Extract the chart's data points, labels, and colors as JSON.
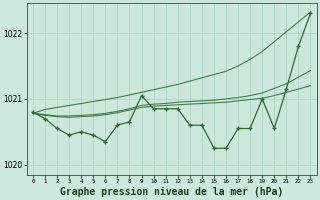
{
  "background_color": "#cce8dc",
  "grid_color": "#b0d8c8",
  "line_color": "#2d6a2d",
  "x_values": [
    0,
    1,
    2,
    3,
    4,
    5,
    6,
    7,
    8,
    9,
    10,
    11,
    12,
    13,
    14,
    15,
    16,
    17,
    18,
    19,
    20,
    21,
    22,
    23
  ],
  "series_main": [
    1020.8,
    1020.7,
    1020.55,
    1020.45,
    1020.5,
    1020.45,
    1020.35,
    1020.6,
    1020.65,
    1021.05,
    1020.85,
    1020.85,
    1020.85,
    1020.6,
    1020.6,
    1020.25,
    1020.25,
    1020.55,
    1020.55,
    1021.0,
    1020.55,
    1021.15,
    1021.8,
    1022.3
  ],
  "series_smooth1": [
    1020.78,
    1020.75,
    1020.73,
    1020.72,
    1020.73,
    1020.74,
    1020.76,
    1020.79,
    1020.83,
    1020.87,
    1020.89,
    1020.9,
    1020.91,
    1020.92,
    1020.93,
    1020.94,
    1020.95,
    1020.97,
    1020.99,
    1021.01,
    1021.05,
    1021.1,
    1021.15,
    1021.2
  ],
  "series_smooth2": [
    1020.78,
    1020.76,
    1020.74,
    1020.74,
    1020.75,
    1020.76,
    1020.78,
    1020.81,
    1020.85,
    1020.9,
    1020.92,
    1020.93,
    1020.95,
    1020.96,
    1020.97,
    1020.98,
    1021.0,
    1021.02,
    1021.05,
    1021.09,
    1021.16,
    1021.23,
    1021.33,
    1021.43
  ],
  "series_trend": [
    1020.78,
    1020.84,
    1020.87,
    1020.9,
    1020.93,
    1020.96,
    1020.99,
    1021.02,
    1021.06,
    1021.1,
    1021.14,
    1021.18,
    1021.22,
    1021.27,
    1021.32,
    1021.37,
    1021.42,
    1021.5,
    1021.6,
    1021.72,
    1021.87,
    1022.02,
    1022.17,
    1022.32
  ],
  "ylim": [
    1019.85,
    1022.45
  ],
  "yticks": [
    1020,
    1021,
    1022
  ],
  "xlabel": "Graphe pression niveau de la mer (hPa)",
  "xlabel_fontsize": 7
}
